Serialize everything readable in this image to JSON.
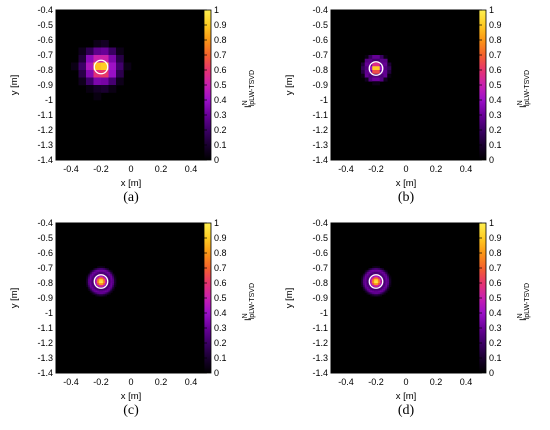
{
  "chart_data": [
    {
      "type": "heatmap",
      "caption": "(a)",
      "xlabel": "x [m]",
      "ylabel": "y [m]",
      "colorbar_label": "I",
      "colorbar_sup": "N",
      "colorbar_sub": "lpLW-TSVD",
      "xlim": [
        -0.5,
        0.5
      ],
      "ylim": [
        -1.4,
        -0.4
      ],
      "xticks": [
        "-0.4",
        "-0.2",
        "0",
        "0.2",
        "0.4"
      ],
      "yticks": [
        "-0.4",
        "-0.5",
        "-0.6",
        "-0.7",
        "-0.8",
        "-0.9",
        "-1",
        "-1.1",
        "-1.2",
        "-1.3",
        "-1.4"
      ],
      "cbar_ticks": [
        "0",
        "0.1",
        "0.2",
        "0.3",
        "0.4",
        "0.5",
        "0.6",
        "0.7",
        "0.8",
        "0.9",
        "1"
      ],
      "target": {
        "x": -0.2,
        "y": -0.78,
        "r": 0.045
      },
      "peak": {
        "x": -0.2,
        "y": -0.78
      },
      "grid_resolution": 20
    },
    {
      "type": "heatmap",
      "caption": "(b)",
      "xlabel": "x [m]",
      "ylabel": "y [m]",
      "colorbar_label": "I",
      "colorbar_sup": "N",
      "colorbar_sub": "lpLW-TSVD",
      "xlim": [
        -0.5,
        0.5
      ],
      "ylim": [
        -1.4,
        -0.4
      ],
      "xticks": [
        "-0.4",
        "-0.2",
        "0",
        "0.2",
        "0.4"
      ],
      "yticks": [
        "-0.4",
        "-0.5",
        "-0.6",
        "-0.7",
        "-0.8",
        "-0.9",
        "-1",
        "-1.1",
        "-1.2",
        "-1.3",
        "-1.4"
      ],
      "cbar_ticks": [
        "0",
        "0.1",
        "0.2",
        "0.3",
        "0.4",
        "0.5",
        "0.6",
        "0.7",
        "0.8",
        "0.9",
        "1"
      ],
      "target": {
        "x": -0.2,
        "y": -0.79,
        "r": 0.045
      },
      "peak": {
        "x": -0.2,
        "y": -0.79
      },
      "grid_resolution": 40
    },
    {
      "type": "heatmap",
      "caption": "(c)",
      "xlabel": "x [m]",
      "ylabel": "y [m]",
      "colorbar_label": "I",
      "colorbar_sup": "N",
      "colorbar_sub": "lpLW-TSVD",
      "xlim": [
        -0.5,
        0.5
      ],
      "ylim": [
        -1.4,
        -0.4
      ],
      "xticks": [
        "-0.4",
        "-0.2",
        "0",
        "0.2",
        "0.4"
      ],
      "yticks": [
        "-0.4",
        "-0.5",
        "-0.6",
        "-0.7",
        "-0.8",
        "-0.9",
        "-1",
        "-1.1",
        "-1.2",
        "-1.3",
        "-1.4"
      ],
      "cbar_ticks": [
        "0",
        "0.1",
        "0.2",
        "0.3",
        "0.4",
        "0.5",
        "0.6",
        "0.7",
        "0.8",
        "0.9",
        "1"
      ],
      "target": {
        "x": -0.2,
        "y": -0.79,
        "r": 0.045
      },
      "peak": {
        "x": -0.2,
        "y": -0.79
      },
      "grid_resolution": 80
    },
    {
      "type": "heatmap",
      "caption": "(d)",
      "xlabel": "x [m]",
      "ylabel": "y [m]",
      "colorbar_label": "I",
      "colorbar_sup": "N",
      "colorbar_sub": "lpLW-TSVD",
      "xlim": [
        -0.5,
        0.5
      ],
      "ylim": [
        -1.4,
        -0.4
      ],
      "xticks": [
        "-0.4",
        "-0.2",
        "0",
        "0.2",
        "0.4"
      ],
      "yticks": [
        "-0.4",
        "-0.5",
        "-0.6",
        "-0.7",
        "-0.8",
        "-0.9",
        "-1",
        "-1.1",
        "-1.2",
        "-1.3",
        "-1.4"
      ],
      "cbar_ticks": [
        "0",
        "0.1",
        "0.2",
        "0.3",
        "0.4",
        "0.5",
        "0.6",
        "0.7",
        "0.8",
        "0.9",
        "1"
      ],
      "target": {
        "x": -0.2,
        "y": -0.79,
        "r": 0.045
      },
      "peak": {
        "x": -0.2,
        "y": -0.79
      },
      "grid_resolution": 80
    }
  ],
  "colors": {
    "colormap": [
      "#000000",
      "#1a0030",
      "#3c0066",
      "#6a0099",
      "#9b10c8",
      "#c81fb0",
      "#e6336e",
      "#f4612c",
      "#fb9616",
      "#ffcc22",
      "#fff050"
    ],
    "target_outline": "#ffffff"
  }
}
